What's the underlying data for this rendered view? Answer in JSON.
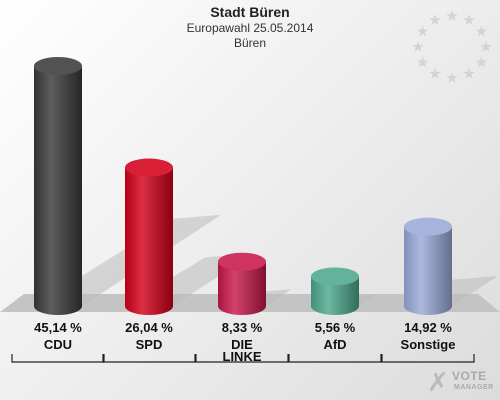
{
  "header": {
    "title": "Stadt Büren",
    "subtitle": "Europawahl 25.05.2014",
    "region": "Büren"
  },
  "logo": {
    "line1": "VOTE",
    "line2": "MANAGER"
  },
  "chart_data": {
    "type": "bar",
    "categories": [
      "CDU",
      "SPD",
      "DIE LINKE",
      "AfD",
      "Sonstige"
    ],
    "category_lines": [
      [
        "CDU"
      ],
      [
        "SPD"
      ],
      [
        "DIE",
        "LINKE"
      ],
      [
        "AfD"
      ],
      [
        "Sonstige"
      ]
    ],
    "values": [
      45.14,
      26.04,
      8.33,
      5.56,
      14.92
    ],
    "value_labels": [
      "45,14 %",
      "26,04 %",
      "8,33 %",
      "5,56 %",
      "14,92 %"
    ],
    "colors": [
      "#3a3a3a",
      "#d4001a",
      "#c8184a",
      "#4ea88e",
      "#9aaad8"
    ],
    "unit": "%",
    "ylim": [
      0,
      45.14
    ]
  }
}
